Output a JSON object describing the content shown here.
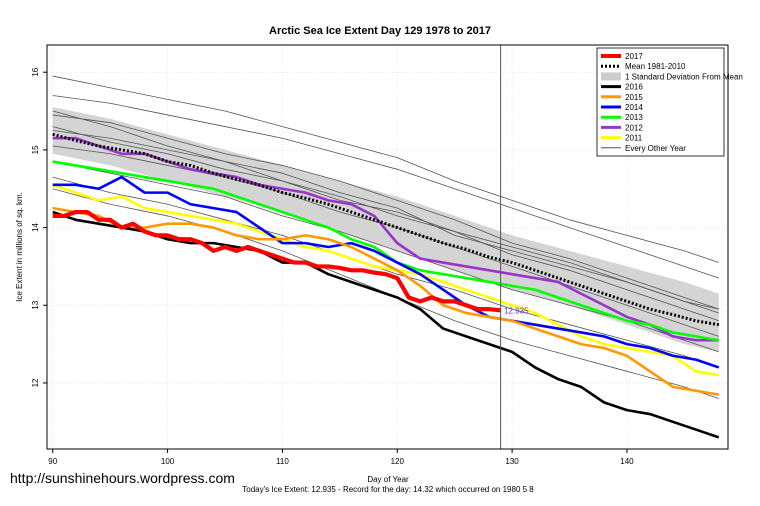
{
  "watermark": "http://sunshinehours.wordpress.com",
  "chart_data": {
    "type": "line",
    "title": "Arctic Sea Ice Extent Day 129 1978 to 2017",
    "xlabel": "Day of Year",
    "ylabel": "Ice Extent in millions of sq. km.",
    "footer": "Today's Ice Extent: 12.935  - Record for the day: 14.32 which occurred on 1980 5 8",
    "xlim": [
      89.5,
      148.8
    ],
    "ylim": [
      11.15,
      16.35
    ],
    "xticks": [
      90,
      100,
      110,
      120,
      130,
      140
    ],
    "yticks": [
      12,
      13,
      14,
      15,
      16
    ],
    "grid": true,
    "legend_position": "top-right",
    "vline_x": 129,
    "point_label": {
      "x": 129.3,
      "y": 12.935,
      "text": "12.935"
    },
    "legend": [
      {
        "label": "2017",
        "kind": "line",
        "color": "#ff0000",
        "width": 4
      },
      {
        "label": "Mean 1981-2010",
        "kind": "dots",
        "color": "#000000",
        "width": 3
      },
      {
        "label": "1 Standard Deviation From Mean",
        "kind": "band",
        "color": "#cccccc",
        "width": 8
      },
      {
        "label": "2016",
        "kind": "line",
        "color": "#000000",
        "width": 3
      },
      {
        "label": "2015",
        "kind": "line",
        "color": "#ff9900",
        "width": 3
      },
      {
        "label": "2014",
        "kind": "line",
        "color": "#0000ff",
        "width": 3
      },
      {
        "label": "2013",
        "kind": "line",
        "color": "#00ff00",
        "width": 3
      },
      {
        "label": "2012",
        "kind": "line",
        "color": "#9933cc",
        "width": 3
      },
      {
        "label": "2011",
        "kind": "line",
        "color": "#ffff00",
        "width": 3
      },
      {
        "label": "Every Other Year",
        "kind": "line",
        "color": "#555555",
        "width": 1
      }
    ],
    "std_band": {
      "x": [
        90,
        95,
        100,
        105,
        110,
        115,
        120,
        125,
        130,
        135,
        140,
        145,
        148
      ],
      "upper": [
        15.55,
        15.4,
        15.2,
        15.0,
        14.8,
        14.6,
        14.4,
        14.15,
        13.9,
        13.7,
        13.5,
        13.3,
        13.15
      ],
      "lower": [
        14.95,
        14.8,
        14.6,
        14.4,
        14.2,
        13.95,
        13.7,
        13.45,
        13.2,
        13.0,
        12.75,
        12.5,
        12.4
      ]
    },
    "series": [
      {
        "name": "Every Other Year",
        "color": "#555555",
        "width": 0.8,
        "x": [
          90,
          95,
          100,
          105,
          110,
          115,
          120,
          125,
          130,
          135,
          140,
          145,
          148
        ],
        "y": [
          15.95,
          15.8,
          15.65,
          15.5,
          15.3,
          15.1,
          14.9,
          14.6,
          14.35,
          14.1,
          13.9,
          13.7,
          13.55
        ]
      },
      {
        "name": "Every Other Year",
        "color": "#555555",
        "width": 0.8,
        "x": [
          90,
          95,
          100,
          105,
          110,
          115,
          120,
          125,
          130,
          135,
          140,
          145,
          148
        ],
        "y": [
          15.7,
          15.6,
          15.45,
          15.3,
          15.15,
          14.95,
          14.75,
          14.5,
          14.25,
          14.0,
          13.75,
          13.5,
          13.35
        ]
      },
      {
        "name": "Every Other Year",
        "color": "#555555",
        "width": 0.8,
        "x": [
          90,
          95,
          100,
          105,
          110,
          115,
          120,
          125,
          130,
          135,
          140,
          145,
          148
        ],
        "y": [
          15.45,
          15.35,
          15.15,
          14.95,
          14.8,
          14.6,
          14.35,
          14.1,
          13.8,
          13.6,
          13.35,
          13.1,
          12.95
        ]
      },
      {
        "name": "Every Other Year",
        "color": "#555555",
        "width": 0.8,
        "x": [
          90,
          95,
          100,
          105,
          110,
          115,
          120,
          125,
          130,
          135,
          140,
          145,
          148
        ],
        "y": [
          15.3,
          15.1,
          14.95,
          14.75,
          14.6,
          14.4,
          14.15,
          13.95,
          13.65,
          13.45,
          13.2,
          12.95,
          12.8
        ]
      },
      {
        "name": "Every Other Year",
        "color": "#555555",
        "width": 0.8,
        "x": [
          90,
          95,
          100,
          105,
          110,
          115,
          120,
          125,
          130,
          135,
          140,
          145,
          148
        ],
        "y": [
          15.05,
          14.95,
          14.8,
          14.65,
          14.45,
          14.2,
          14.0,
          13.75,
          13.5,
          13.25,
          13.0,
          12.75,
          12.6
        ]
      },
      {
        "name": "Every Other Year",
        "color": "#555555",
        "width": 0.8,
        "x": [
          90,
          95,
          100,
          105,
          110,
          115,
          120,
          125,
          130,
          135,
          140,
          145,
          148
        ],
        "y": [
          14.85,
          14.7,
          14.55,
          14.4,
          14.15,
          13.95,
          13.7,
          13.45,
          13.2,
          13.0,
          12.8,
          12.55,
          12.4
        ]
      },
      {
        "name": "Every Other Year",
        "color": "#555555",
        "width": 0.8,
        "x": [
          90,
          95,
          100,
          105,
          110,
          115,
          120,
          125,
          130,
          135,
          140,
          145,
          148
        ],
        "y": [
          14.65,
          14.45,
          14.3,
          14.1,
          13.9,
          13.65,
          13.4,
          13.2,
          12.95,
          12.75,
          12.55,
          12.35,
          12.2
        ]
      },
      {
        "name": "Every Other Year",
        "color": "#555555",
        "width": 0.8,
        "x": [
          90,
          95,
          100,
          105,
          110,
          115,
          120,
          125,
          130,
          135,
          140,
          145,
          148
        ],
        "y": [
          14.5,
          14.3,
          14.15,
          13.95,
          13.7,
          13.4,
          13.1,
          12.8,
          12.55,
          12.35,
          12.15,
          11.95,
          11.8
        ]
      },
      {
        "name": "Every Other Year",
        "color": "#555555",
        "width": 0.8,
        "x": [
          90,
          95,
          100,
          105,
          110,
          115,
          120,
          125,
          130,
          135,
          140,
          145,
          148
        ],
        "y": [
          15.5,
          15.3,
          15.05,
          14.85,
          14.7,
          14.45,
          14.25,
          13.9,
          13.7,
          13.5,
          13.3,
          13.05,
          12.9
        ]
      },
      {
        "name": "Every Other Year",
        "color": "#555555",
        "width": 0.8,
        "x": [
          90,
          95,
          100,
          105,
          110,
          115,
          120,
          125,
          130,
          135,
          140,
          145,
          148
        ],
        "y": [
          15.25,
          15.15,
          15.0,
          14.85,
          14.6,
          14.35,
          14.2,
          13.95,
          13.75,
          13.55,
          13.3,
          13.05,
          12.95
        ]
      },
      {
        "name": "2011",
        "color": "#ffff00",
        "width": 2.6,
        "x": [
          90,
          92,
          94,
          96,
          98,
          100,
          102,
          104,
          106,
          108,
          110,
          112,
          114,
          116,
          118,
          120,
          122,
          124,
          126,
          128,
          130,
          132,
          134,
          136,
          138,
          140,
          142,
          144,
          146,
          148
        ],
        "y": [
          14.55,
          14.45,
          14.35,
          14.4,
          14.25,
          14.2,
          14.15,
          14.1,
          14.05,
          13.95,
          13.85,
          13.75,
          13.7,
          13.6,
          13.5,
          13.45,
          13.4,
          13.3,
          13.2,
          13.1,
          13.0,
          12.9,
          12.75,
          12.6,
          12.5,
          12.45,
          12.4,
          12.35,
          12.15,
          12.1
        ]
      },
      {
        "name": "2012",
        "color": "#9933cc",
        "width": 2.6,
        "x": [
          90,
          92,
          94,
          96,
          98,
          100,
          102,
          104,
          106,
          108,
          110,
          112,
          114,
          116,
          118,
          120,
          122,
          124,
          126,
          128,
          130,
          132,
          134,
          136,
          138,
          140,
          142,
          144,
          146,
          148
        ],
        "y": [
          15.15,
          15.15,
          15.05,
          14.95,
          14.95,
          14.85,
          14.75,
          14.7,
          14.65,
          14.55,
          14.5,
          14.45,
          14.35,
          14.3,
          14.15,
          13.8,
          13.6,
          13.55,
          13.5,
          13.45,
          13.4,
          13.35,
          13.3,
          13.15,
          13.0,
          12.85,
          12.75,
          12.6,
          12.55,
          12.55
        ]
      },
      {
        "name": "2013",
        "color": "#00ff00",
        "width": 2.6,
        "x": [
          90,
          92,
          94,
          96,
          98,
          100,
          102,
          104,
          106,
          108,
          110,
          112,
          114,
          116,
          118,
          120,
          122,
          124,
          126,
          128,
          130,
          132,
          134,
          136,
          138,
          140,
          142,
          144,
          146,
          148
        ],
        "y": [
          14.85,
          14.8,
          14.75,
          14.7,
          14.65,
          14.6,
          14.55,
          14.5,
          14.4,
          14.3,
          14.2,
          14.1,
          14.0,
          13.85,
          13.75,
          13.55,
          13.45,
          13.4,
          13.35,
          13.3,
          13.25,
          13.2,
          13.1,
          13.0,
          12.9,
          12.8,
          12.75,
          12.65,
          12.6,
          12.55
        ]
      },
      {
        "name": "2014",
        "color": "#0000ff",
        "width": 2.6,
        "x": [
          90,
          92,
          94,
          96,
          98,
          100,
          102,
          104,
          106,
          108,
          110,
          112,
          114,
          116,
          118,
          120,
          122,
          124,
          126,
          128,
          130,
          132,
          134,
          136,
          138,
          140,
          142,
          144,
          146,
          148
        ],
        "y": [
          14.55,
          14.55,
          14.5,
          14.65,
          14.45,
          14.45,
          14.3,
          14.25,
          14.2,
          14.0,
          13.8,
          13.8,
          13.75,
          13.8,
          13.7,
          13.55,
          13.4,
          13.2,
          13.0,
          12.85,
          12.8,
          12.75,
          12.7,
          12.65,
          12.6,
          12.5,
          12.45,
          12.35,
          12.3,
          12.2
        ]
      },
      {
        "name": "2015",
        "color": "#ff9900",
        "width": 2.6,
        "x": [
          90,
          92,
          94,
          96,
          98,
          100,
          102,
          104,
          106,
          108,
          110,
          112,
          114,
          116,
          118,
          120,
          122,
          124,
          126,
          128,
          130,
          132,
          134,
          136,
          138,
          140,
          142,
          144,
          146,
          148
        ],
        "y": [
          14.25,
          14.2,
          14.15,
          14.0,
          14.0,
          14.05,
          14.05,
          14.0,
          13.9,
          13.85,
          13.85,
          13.9,
          13.85,
          13.75,
          13.6,
          13.45,
          13.25,
          13.0,
          12.9,
          12.85,
          12.8,
          12.7,
          12.6,
          12.5,
          12.45,
          12.35,
          12.15,
          11.95,
          11.9,
          11.85
        ]
      },
      {
        "name": "2016",
        "color": "#000000",
        "width": 2.6,
        "x": [
          90,
          92,
          94,
          96,
          98,
          100,
          102,
          104,
          106,
          108,
          110,
          112,
          114,
          116,
          118,
          120,
          122,
          124,
          126,
          128,
          130,
          132,
          134,
          136,
          138,
          140,
          142,
          144,
          146,
          148
        ],
        "y": [
          14.2,
          14.1,
          14.05,
          14.0,
          13.95,
          13.85,
          13.8,
          13.8,
          13.75,
          13.7,
          13.55,
          13.55,
          13.4,
          13.3,
          13.2,
          13.1,
          12.95,
          12.7,
          12.6,
          12.5,
          12.4,
          12.2,
          12.05,
          11.95,
          11.75,
          11.65,
          11.6,
          11.5,
          11.4,
          11.3
        ]
      },
      {
        "name": "Mean 1981-2010",
        "color": "#000000",
        "width": 3,
        "dash": "2,2",
        "x": [
          90,
          92,
          94,
          96,
          98,
          100,
          102,
          104,
          106,
          108,
          110,
          112,
          114,
          116,
          118,
          120,
          122,
          124,
          126,
          128,
          130,
          132,
          134,
          136,
          138,
          140,
          142,
          144,
          146,
          148
        ],
        "y": [
          15.2,
          15.12,
          15.05,
          15.0,
          14.95,
          14.85,
          14.8,
          14.7,
          14.62,
          14.55,
          14.45,
          14.38,
          14.3,
          14.2,
          14.1,
          14.0,
          13.9,
          13.8,
          13.72,
          13.62,
          13.55,
          13.45,
          13.35,
          13.25,
          13.15,
          13.05,
          12.95,
          12.88,
          12.8,
          12.75
        ]
      },
      {
        "name": "2017",
        "color": "#ff0000",
        "width": 4.2,
        "x": [
          90,
          91,
          92,
          93,
          94,
          95,
          96,
          97,
          98,
          99,
          100,
          101,
          102,
          103,
          104,
          105,
          106,
          107,
          108,
          109,
          110,
          111,
          112,
          113,
          114,
          115,
          116,
          117,
          118,
          119,
          120,
          121,
          122,
          123,
          124,
          125,
          126,
          127,
          128,
          129
        ],
        "y": [
          14.15,
          14.15,
          14.2,
          14.2,
          14.1,
          14.1,
          14.0,
          14.05,
          13.95,
          13.9,
          13.9,
          13.85,
          13.85,
          13.8,
          13.7,
          13.75,
          13.7,
          13.75,
          13.7,
          13.65,
          13.6,
          13.55,
          13.55,
          13.5,
          13.5,
          13.48,
          13.45,
          13.45,
          13.42,
          13.4,
          13.35,
          13.1,
          13.05,
          13.1,
          13.05,
          13.05,
          13.0,
          12.95,
          12.95,
          12.935
        ]
      }
    ]
  }
}
